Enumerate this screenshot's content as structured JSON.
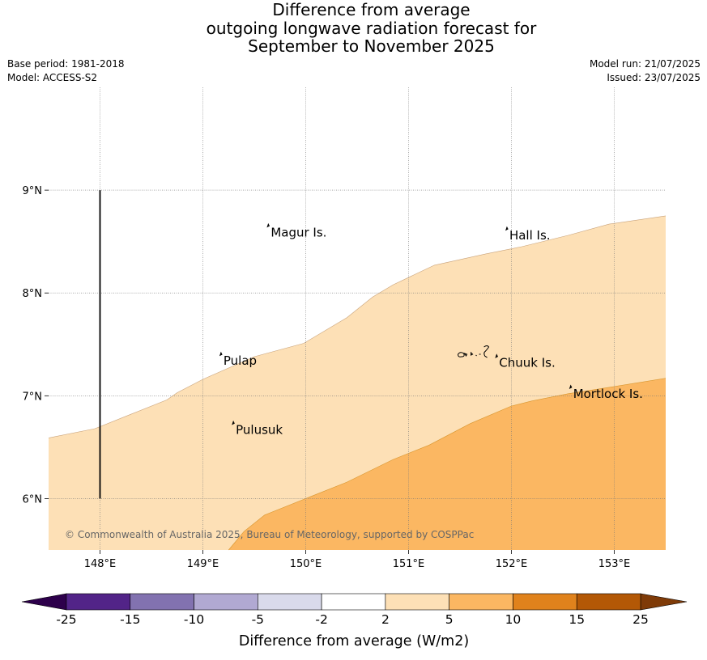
{
  "title_lines": [
    "Difference from average",
    "outgoing longwave radiation forecast for",
    "September to November 2025"
  ],
  "base_period": "Base period: 1981-2018",
  "model": "Model: ACCESS-S2",
  "model_run": "Model run: 21/07/2025",
  "issued": "Issued: 23/07/2025",
  "copyright": "© Commonwealth of Australia 2025, Bureau of Meteorology, supported by COSPPac",
  "map": {
    "lon_range": [
      147.5,
      153.5
    ],
    "lat_range": [
      5.5,
      10.0
    ],
    "lon_ticks": [
      148,
      149,
      150,
      151,
      152,
      153
    ],
    "lon_tick_labels": [
      "148°E",
      "149°E",
      "150°E",
      "151°E",
      "152°E",
      "153°E"
    ],
    "lat_ticks": [
      6,
      7,
      8,
      9
    ],
    "lat_tick_labels": [
      "6°N",
      "7°N",
      "8°N",
      "9°N"
    ],
    "grid": true,
    "places": [
      {
        "name": "Magur Is.",
        "lon": 149.66,
        "lat": 8.55
      },
      {
        "name": "Hall Is.",
        "lon": 151.98,
        "lat": 8.52
      },
      {
        "name": "Pulap",
        "lon": 149.2,
        "lat": 7.3
      },
      {
        "name": "Chuuk Is.",
        "lon": 151.88,
        "lat": 7.28
      },
      {
        "name": "Mortlock Is.",
        "lon": 152.6,
        "lat": 6.98
      },
      {
        "name": "Pulusuk",
        "lon": 149.32,
        "lat": 6.63
      }
    ],
    "contour_2_5_boundary": [
      [
        147.5,
        6.59
      ],
      [
        147.95,
        6.68
      ],
      [
        148.3,
        6.82
      ],
      [
        148.65,
        6.96
      ],
      [
        148.75,
        7.03
      ],
      [
        149.0,
        7.16
      ],
      [
        149.5,
        7.38
      ],
      [
        149.98,
        7.51
      ],
      [
        150.4,
        7.76
      ],
      [
        150.65,
        7.96
      ],
      [
        150.85,
        8.08
      ],
      [
        151.25,
        8.27
      ],
      [
        151.75,
        8.38
      ],
      [
        152.1,
        8.45
      ],
      [
        152.55,
        8.56
      ],
      [
        152.95,
        8.67
      ],
      [
        153.5,
        8.75
      ]
    ],
    "contour_5_10_boundary": [
      [
        149.25,
        5.5
      ],
      [
        149.4,
        5.68
      ],
      [
        149.6,
        5.84
      ],
      [
        150.0,
        6.0
      ],
      [
        150.4,
        6.16
      ],
      [
        150.85,
        6.38
      ],
      [
        151.2,
        6.52
      ],
      [
        151.6,
        6.73
      ],
      [
        152.0,
        6.9
      ],
      [
        152.2,
        6.95
      ],
      [
        152.55,
        7.02
      ],
      [
        153.0,
        7.09
      ],
      [
        153.5,
        7.17
      ]
    ],
    "vertical_line": {
      "lon": 148,
      "lat_from": 6,
      "lat_to": 9
    }
  },
  "colorbar": {
    "label": "Difference from average (W/m2)",
    "tick_labels": [
      "-25",
      "-15",
      "-10",
      "-5",
      "-2",
      "2",
      "5",
      "10",
      "15",
      "25"
    ],
    "colors": [
      "#522488",
      "#8272b0",
      "#b1a9d2",
      "#d9daeb",
      "#ffffff",
      "#fde0b6",
      "#fbb762",
      "#e0821c",
      "#b35806"
    ],
    "under_color": "#2d004b",
    "over_color": "#7f3b08"
  },
  "colors": {
    "band_2_5": "#fde0b6",
    "band_5_10": "#fbb762",
    "grid": "#777777",
    "copyright_text": "#666666"
  }
}
